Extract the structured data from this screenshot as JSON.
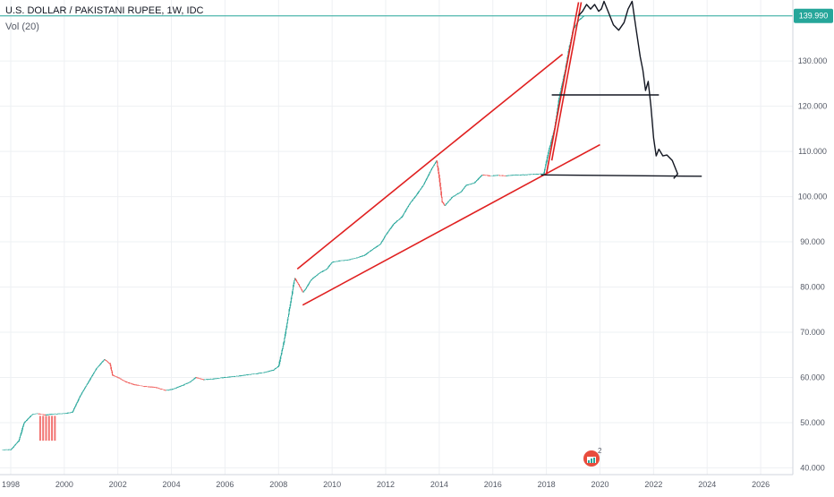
{
  "header": {
    "title": "U.S. DOLLAR / PAKISTANI RUPEE, 1W, IDC",
    "indicator": "Vol (20)"
  },
  "watermark": {
    "icon": "tradingview-logo-icon",
    "badge": "2"
  },
  "colors": {
    "bull": "#26a69a",
    "bear": "#ef5350",
    "price_line": "#26a69a",
    "drawing_red": "#e02020",
    "drawing_black": "#131722",
    "axis_text": "#555a66",
    "grid": "#eef0f3"
  },
  "chart_data": {
    "type": "line",
    "title": "U.S. DOLLAR / PAKISTANI RUPEE, 1W, IDC",
    "xlabel": "",
    "ylabel": "",
    "xlim": [
      1997.6,
      2027.2
    ],
    "ylim": [
      38.5,
      143.5
    ],
    "x_ticks": [
      1998,
      2000,
      2002,
      2004,
      2006,
      2008,
      2010,
      2012,
      2014,
      2016,
      2018,
      2020,
      2022,
      2024,
      2026
    ],
    "y_ticks": [
      40,
      50,
      60,
      70,
      80,
      90,
      100,
      110,
      120,
      130
    ],
    "y_tick_labels": [
      "40.000",
      "50.000",
      "60.000",
      "70.000",
      "80.000",
      "90.000",
      "100.000",
      "110.000",
      "120.000",
      "130.000"
    ],
    "current_price": 139.99,
    "current_price_label": "139.990",
    "grid": true,
    "legend": "none",
    "series": [
      {
        "type": "line",
        "x": [
          1997.7,
          1998.0,
          1998.3,
          1998.5,
          1998.8,
          1999.0,
          1999.3,
          1999.6,
          2000.0,
          2000.3,
          2000.6,
          2000.9,
          2001.2,
          2001.5,
          2001.7,
          2001.8,
          2002.0,
          2002.3,
          2002.6,
          2003.0,
          2003.4,
          2003.8,
          2004.1,
          2004.4,
          2004.7,
          2004.9,
          2005.2,
          2005.6,
          2006.0,
          2006.5,
          2007.0,
          2007.4,
          2007.8,
          2008.0,
          2008.2,
          2008.4,
          2008.6,
          2008.8,
          2008.9,
          2009.0,
          2009.2,
          2009.5,
          2009.8,
          2010.0,
          2010.3,
          2010.6,
          2010.9,
          2011.2,
          2011.5,
          2011.8,
          2012.0,
          2012.3,
          2012.6,
          2012.9,
          2013.1,
          2013.4,
          2013.7,
          2013.9,
          2014.0,
          2014.1,
          2014.2,
          2014.5,
          2014.8,
          2015.0,
          2015.3,
          2015.6,
          2015.9,
          2016.2,
          2016.5,
          2016.8,
          2017.1,
          2017.4,
          2017.7,
          2017.9,
          2018.1,
          2018.3,
          2018.45,
          2018.55,
          2018.7,
          2018.85,
          2019.0,
          2019.2,
          2019.4
        ],
        "y": [
          44.0,
          44.0,
          46.0,
          50.0,
          51.8,
          52.0,
          51.7,
          51.9,
          52.0,
          52.3,
          56.0,
          59.0,
          62.0,
          64.0,
          63.0,
          60.5,
          60.0,
          59.0,
          58.4,
          58.0,
          57.8,
          57.1,
          57.5,
          58.2,
          59.0,
          60.0,
          59.5,
          59.7,
          60.0,
          60.3,
          60.7,
          61.0,
          61.6,
          62.5,
          68.0,
          75.0,
          82.0,
          80.0,
          78.8,
          79.5,
          81.5,
          83.0,
          84.0,
          85.5,
          85.8,
          86.0,
          86.4,
          87.0,
          88.3,
          89.5,
          91.5,
          94.0,
          95.5,
          98.5,
          100.0,
          102.5,
          106.0,
          108.0,
          104.0,
          99.0,
          98.0,
          100.0,
          101.0,
          102.5,
          103.0,
          104.8,
          104.6,
          104.7,
          104.6,
          104.8,
          104.8,
          104.9,
          105.0,
          105.1,
          110.5,
          115.0,
          121.0,
          124.0,
          128.0,
          133.0,
          137.0,
          139.0,
          139.99
        ]
      }
    ],
    "annotations": [
      {
        "type": "trendline",
        "color": "red",
        "x": [
          2008.7,
          2013.9
        ],
        "y": [
          84.0,
          109.0
        ]
      },
      {
        "type": "trendline",
        "color": "red",
        "x": [
          2008.9,
          2020.0
        ],
        "y": [
          76.0,
          111.5
        ]
      },
      {
        "type": "trendline",
        "color": "red",
        "x": [
          2013.9,
          2018.6
        ],
        "y": [
          109.0,
          131.5
        ]
      },
      {
        "type": "trendline",
        "color": "red",
        "x": [
          2018.0,
          2019.2
        ],
        "y": [
          105.0,
          143.0
        ]
      },
      {
        "type": "trendline",
        "color": "red",
        "x": [
          2018.2,
          2019.3
        ],
        "y": [
          108.0,
          143.0
        ]
      },
      {
        "type": "horizontal-segment",
        "color": "black",
        "x": [
          2018.2,
          2022.2
        ],
        "y": [
          122.5,
          122.5
        ]
      },
      {
        "type": "horizontal-segment",
        "color": "black",
        "x": [
          2017.8,
          2023.8
        ],
        "y": [
          104.8,
          104.5
        ]
      },
      {
        "type": "freehand-projection",
        "color": "black",
        "x": [
          2019.2,
          2019.35,
          2019.5,
          2019.65,
          2019.8,
          2019.95,
          2020.05,
          2020.15,
          2020.3,
          2020.5,
          2020.7,
          2020.9,
          2021.05,
          2021.2,
          2021.35,
          2021.5,
          2021.6,
          2021.7,
          2021.8,
          2021.9,
          2022.0,
          2022.1,
          2022.2,
          2022.35,
          2022.5,
          2022.7,
          2022.8,
          2022.9,
          2022.75
        ],
        "y": [
          140.0,
          141.0,
          142.5,
          141.5,
          142.5,
          141.0,
          141.5,
          143.2,
          141.0,
          138.0,
          136.8,
          138.5,
          141.5,
          143.2,
          137.0,
          131.0,
          128.0,
          123.5,
          125.5,
          120.0,
          113.0,
          109.0,
          110.5,
          109.0,
          109.2,
          108.0,
          106.5,
          105.0,
          104.0
        ]
      }
    ]
  }
}
